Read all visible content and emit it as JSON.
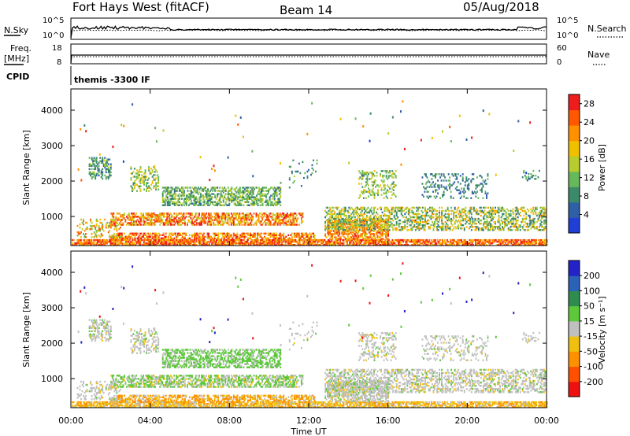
{
  "header": {
    "station": "Fort Hays West (fitACF)",
    "beam": "Beam 14",
    "date": "05/Aug/2018"
  },
  "top_panels": {
    "nsky_label": "N.Sky",
    "nsky_ticks": [
      "10^5",
      "10^0"
    ],
    "nsearch_label": "N.Search",
    "nsearch_ticks": [
      "10^5",
      "10^0"
    ],
    "freq_label_1": "Freq.",
    "freq_label_2": "[MHz]",
    "freq_ticks": [
      "18",
      "8"
    ],
    "nave_label": "Nave",
    "nave_ticks": [
      "60",
      "0"
    ],
    "cpid_label": "CPID",
    "cpid_text": "themis -3300 IF"
  },
  "colors": {
    "power_scale": [
      "#1f3fd6",
      "#2f5fa6",
      "#3d8a6a",
      "#66b85a",
      "#b8cc30",
      "#f0c000",
      "#ff9000",
      "#ff5800",
      "#ee1c1c"
    ],
    "velocity_scale": [
      "#2323c8",
      "#2a62b8",
      "#2e8c4e",
      "#5cc83a",
      "#c0c0c0",
      "#f0c010",
      "#ff9000",
      "#ff5000",
      "#ee1111"
    ]
  },
  "chart_data": [
    {
      "type": "heatmap",
      "name": "power",
      "ylabel": "Slant Range [km]",
      "xlabel": "Time UT",
      "x_ticks": [
        "00:00",
        "04:00",
        "08:00",
        "12:00",
        "16:00",
        "20:00",
        "00:00"
      ],
      "x_range_hours": [
        0,
        24
      ],
      "y_ticks": [
        "1000",
        "2000",
        "3000",
        "4000"
      ],
      "ylim": [
        180,
        4600
      ],
      "colorbar_label": "Power [dB]",
      "colorbar_ticks": [
        "4",
        "8",
        "12",
        "16",
        "20",
        "24",
        "28"
      ],
      "colorbar_range": [
        0,
        30
      ]
    },
    {
      "type": "heatmap",
      "name": "velocity",
      "ylabel": "Slant Range [km]",
      "xlabel": "Time UT",
      "x_ticks": [
        "00:00",
        "04:00",
        "08:00",
        "12:00",
        "16:00",
        "20:00",
        "00:00"
      ],
      "x_range_hours": [
        0,
        24
      ],
      "y_ticks": [
        "1000",
        "2000",
        "3000",
        "4000"
      ],
      "ylim": [
        180,
        4600
      ],
      "colorbar_label": "Velocity [m s⁻¹]",
      "colorbar_ticks": [
        "200",
        "100",
        "50",
        "15",
        "-15",
        "-50",
        "-100",
        "-200"
      ],
      "colorbar_range": [
        -250,
        250
      ]
    }
  ]
}
